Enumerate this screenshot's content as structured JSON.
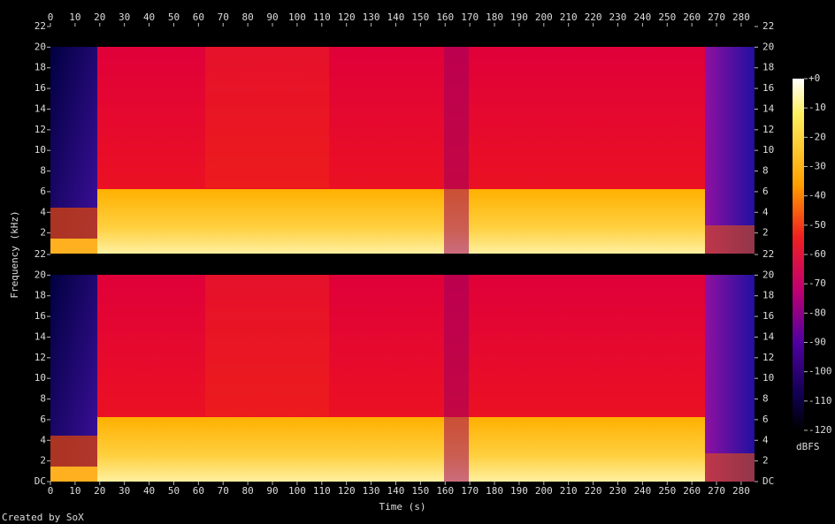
{
  "chart_data": {
    "type": "spectrogram",
    "xlabel": "Time (s)",
    "ylabel": "Frequency (kHz)",
    "footer": "Created by SoX",
    "xlim": [
      0,
      285.4
    ],
    "xticks": [
      0,
      10,
      20,
      30,
      40,
      50,
      60,
      70,
      80,
      90,
      100,
      110,
      120,
      130,
      140,
      150,
      160,
      170,
      180,
      190,
      200,
      210,
      220,
      230,
      240,
      250,
      260,
      270,
      280
    ],
    "panels": [
      {
        "ylim": [
          0,
          22
        ],
        "yticks": [
          2,
          4,
          6,
          8,
          10,
          12,
          14,
          16,
          18,
          20,
          22
        ]
      },
      {
        "ylim": [
          0,
          22
        ],
        "yticks": [
          {
            "value": 0,
            "label": "DC"
          },
          2,
          4,
          6,
          8,
          10,
          12,
          14,
          16,
          18,
          20,
          22
        ]
      }
    ],
    "colorbar": {
      "label": "dBFS",
      "lim": [
        -120,
        0
      ],
      "ticks": [
        {
          "value": 0,
          "label": "+0"
        },
        -10,
        -20,
        -30,
        -40,
        -50,
        -60,
        -70,
        -80,
        -90,
        -100,
        -110,
        -120
      ]
    }
  }
}
